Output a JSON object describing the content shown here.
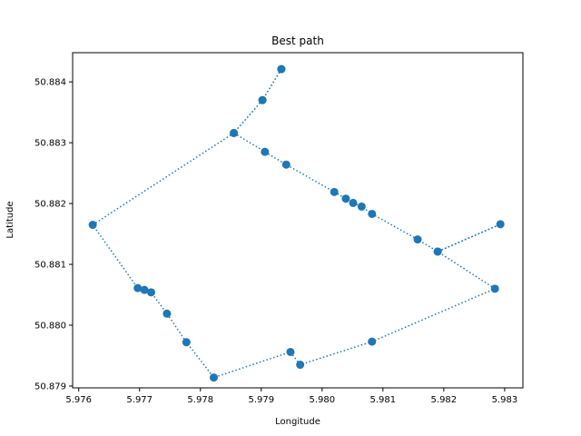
{
  "chart_data": {
    "type": "scatter",
    "title": "Best path",
    "xlabel": "Longitude",
    "ylabel": "Latitude",
    "xlim": [
      5.9759,
      5.9833
    ],
    "ylim": [
      50.87897,
      50.88448
    ],
    "xticks": [
      5.976,
      5.977,
      5.978,
      5.979,
      5.98,
      5.981,
      5.982,
      5.983
    ],
    "xtick_labels": [
      "5.976",
      "5.977",
      "5.978",
      "5.979",
      "5.980",
      "5.981",
      "5.982",
      "5.983"
    ],
    "yticks": [
      50.879,
      50.88,
      50.881,
      50.882,
      50.883,
      50.884
    ],
    "ytick_labels": [
      "50.879",
      "50.880",
      "50.881",
      "50.882",
      "50.883",
      "50.884"
    ],
    "grid": false,
    "colors": {
      "series": "#1f77b4",
      "axes": "#000000"
    },
    "line_style": "dotted",
    "path": [
      {
        "x": 5.97933,
        "y": 50.88421
      },
      {
        "x": 5.97902,
        "y": 50.8837
      },
      {
        "x": 5.97855,
        "y": 50.88316
      },
      {
        "x": 5.97623,
        "y": 50.88165
      },
      {
        "x": 5.97697,
        "y": 50.88061
      },
      {
        "x": 5.97708,
        "y": 50.88058
      },
      {
        "x": 5.97719,
        "y": 50.88054
      },
      {
        "x": 5.97745,
        "y": 50.88019
      },
      {
        "x": 5.97777,
        "y": 50.87972
      },
      {
        "x": 5.97822,
        "y": 50.87914
      },
      {
        "x": 5.97948,
        "y": 50.87956
      },
      {
        "x": 5.97964,
        "y": 50.87935
      },
      {
        "x": 5.98082,
        "y": 50.87973
      },
      {
        "x": 5.98284,
        "y": 50.8806
      },
      {
        "x": 5.9819,
        "y": 50.88121
      },
      {
        "x": 5.98293,
        "y": 50.88166
      },
      {
        "x": 5.9819,
        "y": 50.88121
      },
      {
        "x": 5.98157,
        "y": 50.88141
      },
      {
        "x": 5.98082,
        "y": 50.88183
      },
      {
        "x": 5.98065,
        "y": 50.88195
      },
      {
        "x": 5.98051,
        "y": 50.88201
      },
      {
        "x": 5.98039,
        "y": 50.88208
      },
      {
        "x": 5.9802,
        "y": 50.88219
      },
      {
        "x": 5.97941,
        "y": 50.88264
      },
      {
        "x": 5.97906,
        "y": 50.88285
      },
      {
        "x": 5.97855,
        "y": 50.88316
      },
      {
        "x": 5.97902,
        "y": 50.8837
      },
      {
        "x": 5.97933,
        "y": 50.88421
      }
    ]
  }
}
